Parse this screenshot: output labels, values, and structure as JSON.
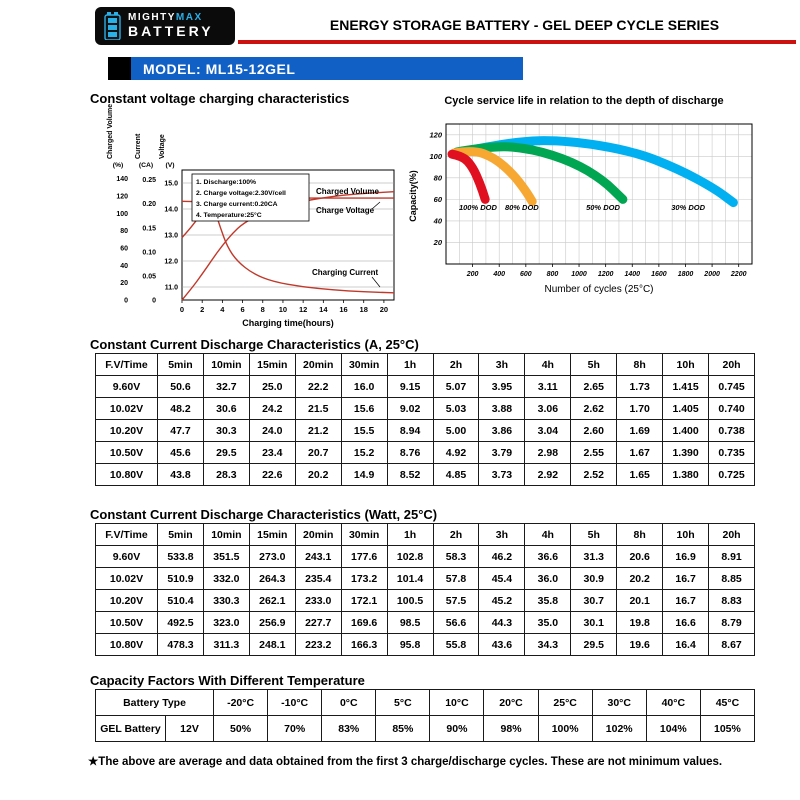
{
  "header": {
    "logo": {
      "mighty": "MIGHTY",
      "max": "MAX",
      "battery": "BATTERY"
    },
    "series_title": "ENERGY STORAGE BATTERY - GEL DEEP CYCLE SERIES",
    "model_label": "MODEL: ML15-12GEL"
  },
  "colors": {
    "bar_blue": "#1160c6",
    "rule_red": "#cc1111",
    "brand_cyan": "#2ab0e8",
    "chart_line_red": "#c0392b"
  },
  "chart_data": [
    {
      "type": "line",
      "title": "Constant voltage charging characteristics",
      "xlabel": "Charging time(hours)",
      "x_range": [
        0,
        21
      ],
      "x_ticks": [
        0,
        2,
        4,
        6,
        8,
        10,
        12,
        14,
        16,
        18,
        20
      ],
      "grid": "horizontal",
      "axes": [
        {
          "label": "Charged Volume",
          "unit": "(%)",
          "range": [
            0,
            150
          ],
          "ticks": [
            "140",
            "120",
            "100",
            "80",
            "60",
            "40",
            "20",
            "0"
          ]
        },
        {
          "label": "Current",
          "unit": "(CA)",
          "range": [
            0,
            0.27
          ],
          "ticks": [
            "0.25",
            "0.20",
            "0.15",
            "0.10",
            "0.05",
            "0"
          ]
        },
        {
          "label": "Voltage",
          "unit": "(V)",
          "range": [
            10.5,
            15.5
          ],
          "ticks": [
            "15.0",
            "14.0",
            "13.0",
            "12.0",
            "11.0"
          ]
        }
      ],
      "notes": [
        "1. Discharge:100%",
        "2. Charge voltage:2.30V/cell",
        "3. Charge current:0.20CA",
        "4. Temperature:25°C"
      ],
      "series": [
        {
          "name": "Charged Volume",
          "axis": 0,
          "color": "#c0392b",
          "points": [
            [
              0,
              0
            ],
            [
              1,
              14
            ],
            [
              2,
              30
            ],
            [
              3,
              47
            ],
            [
              4,
              63
            ],
            [
              5,
              77
            ],
            [
              6,
              88
            ],
            [
              8,
              101
            ],
            [
              10,
              109
            ],
            [
              12,
              114
            ],
            [
              14,
              118
            ],
            [
              16,
              121
            ],
            [
              18,
              123
            ],
            [
              21,
              125
            ]
          ]
        },
        {
          "name": "Charge Voltage",
          "axis": 2,
          "color": "#c0392b",
          "points": [
            [
              0,
              12.9
            ],
            [
              0.7,
              13.2
            ],
            [
              1.5,
              13.6
            ],
            [
              2.2,
              13.95
            ],
            [
              3,
              14.25
            ],
            [
              3.8,
              14.4
            ],
            [
              5,
              14.42
            ],
            [
              21,
              14.42
            ]
          ]
        },
        {
          "name": "Charging Current",
          "axis": 1,
          "color": "#c0392b",
          "points": [
            [
              0,
              0.205
            ],
            [
              2.6,
              0.205
            ],
            [
              3.2,
              0.19
            ],
            [
              3.8,
              0.15
            ],
            [
              4.5,
              0.11
            ],
            [
              5.5,
              0.08
            ],
            [
              7,
              0.055
            ],
            [
              9,
              0.038
            ],
            [
              12,
              0.027
            ],
            [
              15,
              0.021
            ],
            [
              18,
              0.017
            ],
            [
              21,
              0.015
            ]
          ]
        }
      ]
    },
    {
      "type": "line",
      "title": "Cycle service life in relation to the depth of discharge",
      "xlabel": "Number of cycles (25°C)",
      "ylabel": "Capacity(%)",
      "x_range": [
        0,
        2300
      ],
      "y_range": [
        0,
        130
      ],
      "x_ticks": [
        200,
        400,
        600,
        800,
        1000,
        1200,
        1400,
        1600,
        1800,
        2000,
        2200
      ],
      "y_ticks": [
        120,
        100,
        80,
        60,
        40,
        20
      ],
      "grid": "both",
      "series": [
        {
          "name": "100% DOD",
          "color": "#e01020",
          "label_at": [
            240,
            50
          ],
          "points": [
            [
              45,
              102
            ],
            [
              130,
              100
            ],
            [
              200,
              90
            ],
            [
              255,
              75
            ],
            [
              295,
              60
            ]
          ]
        },
        {
          "name": "80% DOD",
          "color": "#f7a833",
          "label_at": [
            570,
            50
          ],
          "points": [
            [
              60,
              103
            ],
            [
              200,
              106
            ],
            [
              360,
              99
            ],
            [
              500,
              84
            ],
            [
              600,
              68
            ],
            [
              648,
              58
            ]
          ]
        },
        {
          "name": "50% DOD",
          "color": "#00a651",
          "label_at": [
            1180,
            50
          ],
          "points": [
            [
              80,
              104
            ],
            [
              350,
              110
            ],
            [
              650,
              107
            ],
            [
              950,
              95
            ],
            [
              1180,
              78
            ],
            [
              1330,
              60
            ]
          ]
        },
        {
          "name": "30% DOD",
          "color": "#00b0f0",
          "label_at": [
            1820,
            50
          ],
          "points": [
            [
              120,
              104
            ],
            [
              500,
              114
            ],
            [
              900,
              115
            ],
            [
              1400,
              105
            ],
            [
              1750,
              88
            ],
            [
              2020,
              70
            ],
            [
              2160,
              57
            ]
          ]
        }
      ]
    }
  ],
  "tables": {
    "discharge_a": {
      "title": "Constant Current Discharge Characteristics (A, 25°C)",
      "headers": [
        "F.V/Time",
        "5min",
        "10min",
        "15min",
        "20min",
        "30min",
        "1h",
        "2h",
        "3h",
        "4h",
        "5h",
        "8h",
        "10h",
        "20h"
      ],
      "rows": [
        [
          "9.60V",
          "50.6",
          "32.7",
          "25.0",
          "22.2",
          "16.0",
          "9.15",
          "5.07",
          "3.95",
          "3.11",
          "2.65",
          "1.73",
          "1.415",
          "0.745"
        ],
        [
          "10.02V",
          "48.2",
          "30.6",
          "24.2",
          "21.5",
          "15.6",
          "9.02",
          "5.03",
          "3.88",
          "3.06",
          "2.62",
          "1.70",
          "1.405",
          "0.740"
        ],
        [
          "10.20V",
          "47.7",
          "30.3",
          "24.0",
          "21.2",
          "15.5",
          "8.94",
          "5.00",
          "3.86",
          "3.04",
          "2.60",
          "1.69",
          "1.400",
          "0.738"
        ],
        [
          "10.50V",
          "45.6",
          "29.5",
          "23.4",
          "20.7",
          "15.2",
          "8.76",
          "4.92",
          "3.79",
          "2.98",
          "2.55",
          "1.67",
          "1.390",
          "0.735"
        ],
        [
          "10.80V",
          "43.8",
          "28.3",
          "22.6",
          "20.2",
          "14.9",
          "8.52",
          "4.85",
          "3.73",
          "2.92",
          "2.52",
          "1.65",
          "1.380",
          "0.725"
        ]
      ]
    },
    "discharge_w": {
      "title": "Constant Current Discharge Characteristics (Watt, 25°C)",
      "headers": [
        "F.V/Time",
        "5min",
        "10min",
        "15min",
        "20min",
        "30min",
        "1h",
        "2h",
        "3h",
        "4h",
        "5h",
        "8h",
        "10h",
        "20h"
      ],
      "rows": [
        [
          "9.60V",
          "533.8",
          "351.5",
          "273.0",
          "243.1",
          "177.6",
          "102.8",
          "58.3",
          "46.2",
          "36.6",
          "31.3",
          "20.6",
          "16.9",
          "8.91"
        ],
        [
          "10.02V",
          "510.9",
          "332.0",
          "264.3",
          "235.4",
          "173.2",
          "101.4",
          "57.8",
          "45.4",
          "36.0",
          "30.9",
          "20.2",
          "16.7",
          "8.85"
        ],
        [
          "10.20V",
          "510.4",
          "330.3",
          "262.1",
          "233.0",
          "172.1",
          "100.5",
          "57.5",
          "45.2",
          "35.8",
          "30.7",
          "20.1",
          "16.7",
          "8.83"
        ],
        [
          "10.50V",
          "492.5",
          "323.0",
          "256.9",
          "227.7",
          "169.6",
          "98.5",
          "56.6",
          "44.3",
          "35.0",
          "30.1",
          "19.8",
          "16.6",
          "8.79"
        ],
        [
          "10.80V",
          "478.3",
          "311.3",
          "248.1",
          "223.2",
          "166.3",
          "95.8",
          "55.8",
          "43.6",
          "34.3",
          "29.5",
          "19.6",
          "16.4",
          "8.67"
        ]
      ]
    },
    "capacity_factors": {
      "title": "Capacity Factors With Different Temperature",
      "header_row": [
        {
          "text": "Battery Type",
          "colspan": 2
        },
        {
          "text": "-20°C"
        },
        {
          "text": "-10°C"
        },
        {
          "text": "0°C"
        },
        {
          "text": "5°C"
        },
        {
          "text": "10°C"
        },
        {
          "text": "20°C"
        },
        {
          "text": "25°C"
        },
        {
          "text": "30°C"
        },
        {
          "text": "40°C"
        },
        {
          "text": "45°C"
        }
      ],
      "rows": [
        [
          "GEL Battery",
          "12V",
          "50%",
          "70%",
          "83%",
          "85%",
          "90%",
          "98%",
          "100%",
          "102%",
          "104%",
          "105%"
        ]
      ]
    }
  },
  "footnote": "★The above are average and data obtained from the first 3 charge/discharge cycles. These are not minimum values."
}
